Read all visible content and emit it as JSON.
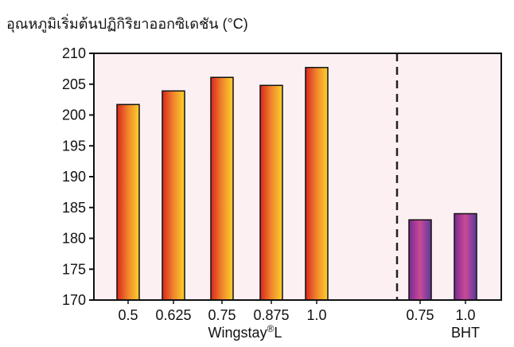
{
  "chart_data": {
    "type": "bar",
    "ylabel": "อุณหภูมิเริ่มต้นปฏิกิริยาออกซิเดชัน (°C)",
    "ylim": [
      170,
      210
    ],
    "yticks": [
      170,
      175,
      180,
      185,
      190,
      195,
      200,
      205,
      210
    ],
    "grid": false,
    "plot_background": "#fdf0f3",
    "groups": [
      {
        "name": "Wingstay®L",
        "name_base": "Wingstay",
        "name_sup": "®",
        "name_suffix": "L",
        "categories": [
          "0.5",
          "0.625",
          "0.75",
          "0.875",
          "1.0"
        ],
        "values": [
          201.7,
          203.9,
          206.1,
          204.8,
          207.7
        ],
        "gradient": [
          "#d8261f",
          "#f0862c",
          "#fcd12a"
        ]
      },
      {
        "name": "BHT",
        "categories": [
          "0.75",
          "1.0"
        ],
        "values": [
          183.0,
          184.0
        ],
        "gradient": [
          "#7a2a92",
          "#c94a98",
          "#5c3a9a"
        ]
      }
    ]
  }
}
